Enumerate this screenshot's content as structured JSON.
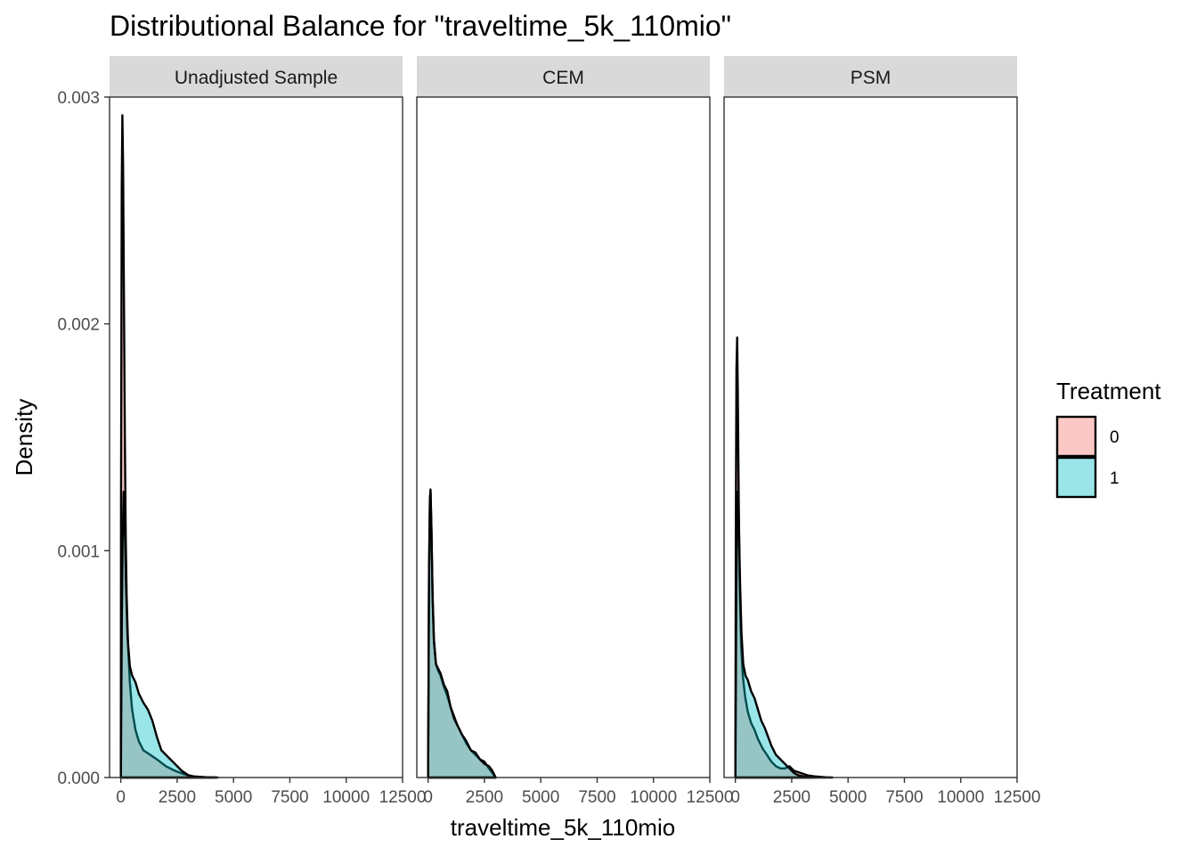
{
  "chart_data": {
    "type": "area",
    "title": "Distributional Balance for \"traveltime_5k_110mio\"",
    "xlabel": "traveltime_5k_110mio",
    "ylabel": "Density",
    "xlim": [
      -500,
      12500
    ],
    "ylim": [
      0,
      0.003
    ],
    "x_ticks": [
      0,
      2500,
      5000,
      7500,
      10000,
      12500
    ],
    "x_tick_labels": [
      "0",
      "2500",
      "5000",
      "7500",
      "10000",
      "12500"
    ],
    "y_ticks": [
      0,
      0.001,
      0.002,
      0.003
    ],
    "y_tick_labels": [
      "0.000",
      "0.001",
      "0.002",
      "0.003"
    ],
    "legend": {
      "title": "Treatment",
      "placement": "right",
      "entries": [
        {
          "label": "0",
          "color": "#F8766D"
        },
        {
          "label": "1",
          "color": "#00BFC4"
        }
      ]
    },
    "fill_opacity": 0.4,
    "panels": [
      {
        "name": "Unadjusted Sample",
        "series": [
          {
            "group": "0",
            "points": [
              [
                0,
                0
              ],
              [
                10,
                0.0012
              ],
              [
                40,
                0.0026
              ],
              [
                70,
                0.00292
              ],
              [
                100,
                0.0027
              ],
              [
                140,
                0.0021
              ],
              [
                180,
                0.0015
              ],
              [
                220,
                0.00105
              ],
              [
                260,
                0.0008
              ],
              [
                320,
                0.00058
              ],
              [
                400,
                0.00042
              ],
              [
                500,
                0.0003
              ],
              [
                650,
                0.00021
              ],
              [
                800,
                0.00016
              ],
              [
                1000,
                0.00012
              ],
              [
                1300,
                0.0001
              ],
              [
                1600,
                8e-05
              ],
              [
                2000,
                5e-05
              ],
              [
                2400,
                3e-05
              ],
              [
                2800,
                1.5e-05
              ],
              [
                3200,
                5e-06
              ],
              [
                3800,
                1e-06
              ],
              [
                4200,
                0
              ]
            ]
          },
          {
            "group": "1",
            "points": [
              [
                0,
                0
              ],
              [
                40,
                0.00065
              ],
              [
                80,
                0.00105
              ],
              [
                130,
                0.00126
              ],
              [
                180,
                0.0011
              ],
              [
                230,
                0.00085
              ],
              [
                300,
                0.00062
              ],
              [
                400,
                0.00049
              ],
              [
                500,
                0.00045
              ],
              [
                650,
                0.00042
              ],
              [
                800,
                0.00037
              ],
              [
                1000,
                0.00033
              ],
              [
                1200,
                0.0003
              ],
              [
                1400,
                0.00025
              ],
              [
                1600,
                0.00018
              ],
              [
                1800,
                0.00012
              ],
              [
                2100,
                9e-05
              ],
              [
                2400,
                6e-05
              ],
              [
                2700,
                3e-05
              ],
              [
                3000,
                1e-05
              ],
              [
                3300,
                3e-06
              ],
              [
                3800,
                1e-06
              ],
              [
                4300,
                0
              ]
            ]
          }
        ]
      },
      {
        "name": "CEM",
        "series": [
          {
            "group": "0",
            "points": [
              [
                0,
                0
              ],
              [
                40,
                0.0009
              ],
              [
                80,
                0.00122
              ],
              [
                110,
                0.00126
              ],
              [
                150,
                0.0011
              ],
              [
                200,
                0.0008
              ],
              [
                260,
                0.00061
              ],
              [
                350,
                0.0005
              ],
              [
                450,
                0.00047
              ],
              [
                550,
                0.00045
              ],
              [
                700,
                0.0004
              ],
              [
                850,
                0.00036
              ],
              [
                1000,
                0.00031
              ],
              [
                1150,
                0.00027
              ],
              [
                1300,
                0.00023
              ],
              [
                1500,
                0.00019
              ],
              [
                1700,
                0.00015
              ],
              [
                1900,
                0.00012
              ],
              [
                2100,
                0.0001
              ],
              [
                2300,
                8e-05
              ],
              [
                2500,
                7e-05
              ],
              [
                2700,
                4e-05
              ],
              [
                2850,
                2e-05
              ],
              [
                3000,
                0
              ]
            ]
          },
          {
            "group": "1",
            "points": [
              [
                0,
                0
              ],
              [
                40,
                0.0009
              ],
              [
                80,
                0.00123
              ],
              [
                110,
                0.00127
              ],
              [
                150,
                0.0011
              ],
              [
                200,
                0.0008
              ],
              [
                260,
                0.0006
              ],
              [
                350,
                0.0005
              ],
              [
                450,
                0.00048
              ],
              [
                550,
                0.00046
              ],
              [
                700,
                0.00041
              ],
              [
                850,
                0.00038
              ],
              [
                1000,
                0.00031
              ],
              [
                1150,
                0.00026
              ],
              [
                1300,
                0.00023
              ],
              [
                1500,
                0.00019
              ],
              [
                1700,
                0.00016
              ],
              [
                1900,
                0.00012
              ],
              [
                2100,
                0.00011
              ],
              [
                2300,
                8e-05
              ],
              [
                2500,
                6e-05
              ],
              [
                2700,
                5e-05
              ],
              [
                2850,
                3e-05
              ],
              [
                3000,
                0
              ]
            ]
          }
        ]
      },
      {
        "name": "PSM",
        "series": [
          {
            "group": "0",
            "points": [
              [
                0,
                0
              ],
              [
                20,
                0.0011
              ],
              [
                50,
                0.0018
              ],
              [
                80,
                0.00194
              ],
              [
                110,
                0.0017
              ],
              [
                150,
                0.0012
              ],
              [
                200,
                0.0008
              ],
              [
                260,
                0.00058
              ],
              [
                330,
                0.00045
              ],
              [
                430,
                0.00036
              ],
              [
                550,
                0.00029
              ],
              [
                700,
                0.00024
              ],
              [
                850,
                0.00021
              ],
              [
                1000,
                0.00017
              ],
              [
                1200,
                0.00013
              ],
              [
                1400,
                0.0001
              ],
              [
                1600,
                7e-05
              ],
              [
                1800,
                5e-05
              ],
              [
                2000,
                4e-05
              ],
              [
                2200,
                4e-05
              ],
              [
                2400,
                5e-05
              ],
              [
                2600,
                3e-05
              ],
              [
                2900,
                2e-05
              ],
              [
                3200,
                1e-05
              ],
              [
                3500,
                5e-06
              ],
              [
                4000,
                1e-06
              ],
              [
                4300,
                0
              ]
            ]
          },
          {
            "group": "1",
            "points": [
              [
                0,
                0
              ],
              [
                40,
                0.0008
              ],
              [
                80,
                0.00115
              ],
              [
                120,
                0.00126
              ],
              [
                160,
                0.0011
              ],
              [
                210,
                0.00085
              ],
              [
                270,
                0.00064
              ],
              [
                350,
                0.0005
              ],
              [
                450,
                0.00045
              ],
              [
                550,
                0.00043
              ],
              [
                700,
                0.00038
              ],
              [
                850,
                0.00035
              ],
              [
                1000,
                0.0003
              ],
              [
                1150,
                0.00025
              ],
              [
                1300,
                0.00022
              ],
              [
                1450,
                0.00018
              ],
              [
                1600,
                0.00014
              ],
              [
                1800,
                0.0001
              ],
              [
                2000,
                8e-05
              ],
              [
                2200,
                6e-05
              ],
              [
                2400,
                4e-05
              ],
              [
                2600,
                2e-05
              ],
              [
                2800,
                1e-05
              ],
              [
                3100,
                3e-06
              ],
              [
                3500,
                0
              ]
            ]
          }
        ]
      }
    ]
  }
}
